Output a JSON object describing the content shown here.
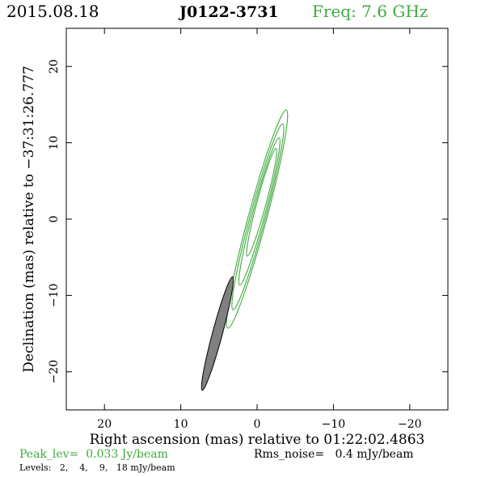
{
  "header": {
    "date": "2015.08.18",
    "source": "J0122-3731",
    "freq": "Freq: 7.6 GHz"
  },
  "footer": {
    "peak": "Peak_lev=  0.033 Jy/beam",
    "rms": "Rms_noise=   0.4 mJy/beam",
    "levels": "Levels:   2,    4,    9,   18 mJy/beam"
  },
  "colors": {
    "contour": "#3faa3f",
    "beam_fill": "#808080",
    "frame": "#000000",
    "peak_text": "#3faa3f",
    "freq_text": "#3faa3f"
  },
  "chart_data": {
    "type": "contour",
    "title": "J0122-3731",
    "xlabel": "Right ascension (mas) relative to 01:22:02.4863",
    "ylabel": "Declination (mas) relative to −37:31:26.777",
    "xlim": [
      25,
      -25
    ],
    "ylim": [
      -25,
      25
    ],
    "xticks": [
      20,
      10,
      0,
      -10,
      -20
    ],
    "yticks": [
      20,
      10,
      0,
      -10,
      -20
    ],
    "xtick_labels": [
      "20",
      "10",
      "0",
      "−10",
      "−20"
    ],
    "ytick_labels": [
      "20",
      "10",
      "0",
      "−10",
      "−20"
    ],
    "contour_levels_mJy": [
      2,
      4,
      9,
      18
    ],
    "peak_Jy_per_beam": 0.033,
    "rms_noise_mJy_per_beam": 0.4,
    "contours": [
      {
        "level": 2,
        "center": [
          0.0,
          0.0
        ],
        "semi_major": 14.8,
        "semi_minor": 1.2,
        "pa_deg": 15
      },
      {
        "level": 4,
        "center": [
          -0.1,
          0.3
        ],
        "semi_major": 12.6,
        "semi_minor": 1.0,
        "pa_deg": 15
      },
      {
        "level": 9,
        "center": [
          -0.3,
          1.0
        ],
        "semi_major": 10.0,
        "semi_minor": 0.8,
        "pa_deg": 15
      },
      {
        "level": 18,
        "center": [
          -0.6,
          2.2
        ],
        "semi_major": 7.3,
        "semi_minor": 0.6,
        "pa_deg": 15
      }
    ],
    "beam": {
      "center": [
        5.2,
        -15.0
      ],
      "semi_major": 7.7,
      "semi_minor": 0.65,
      "pa_deg": 15
    }
  }
}
